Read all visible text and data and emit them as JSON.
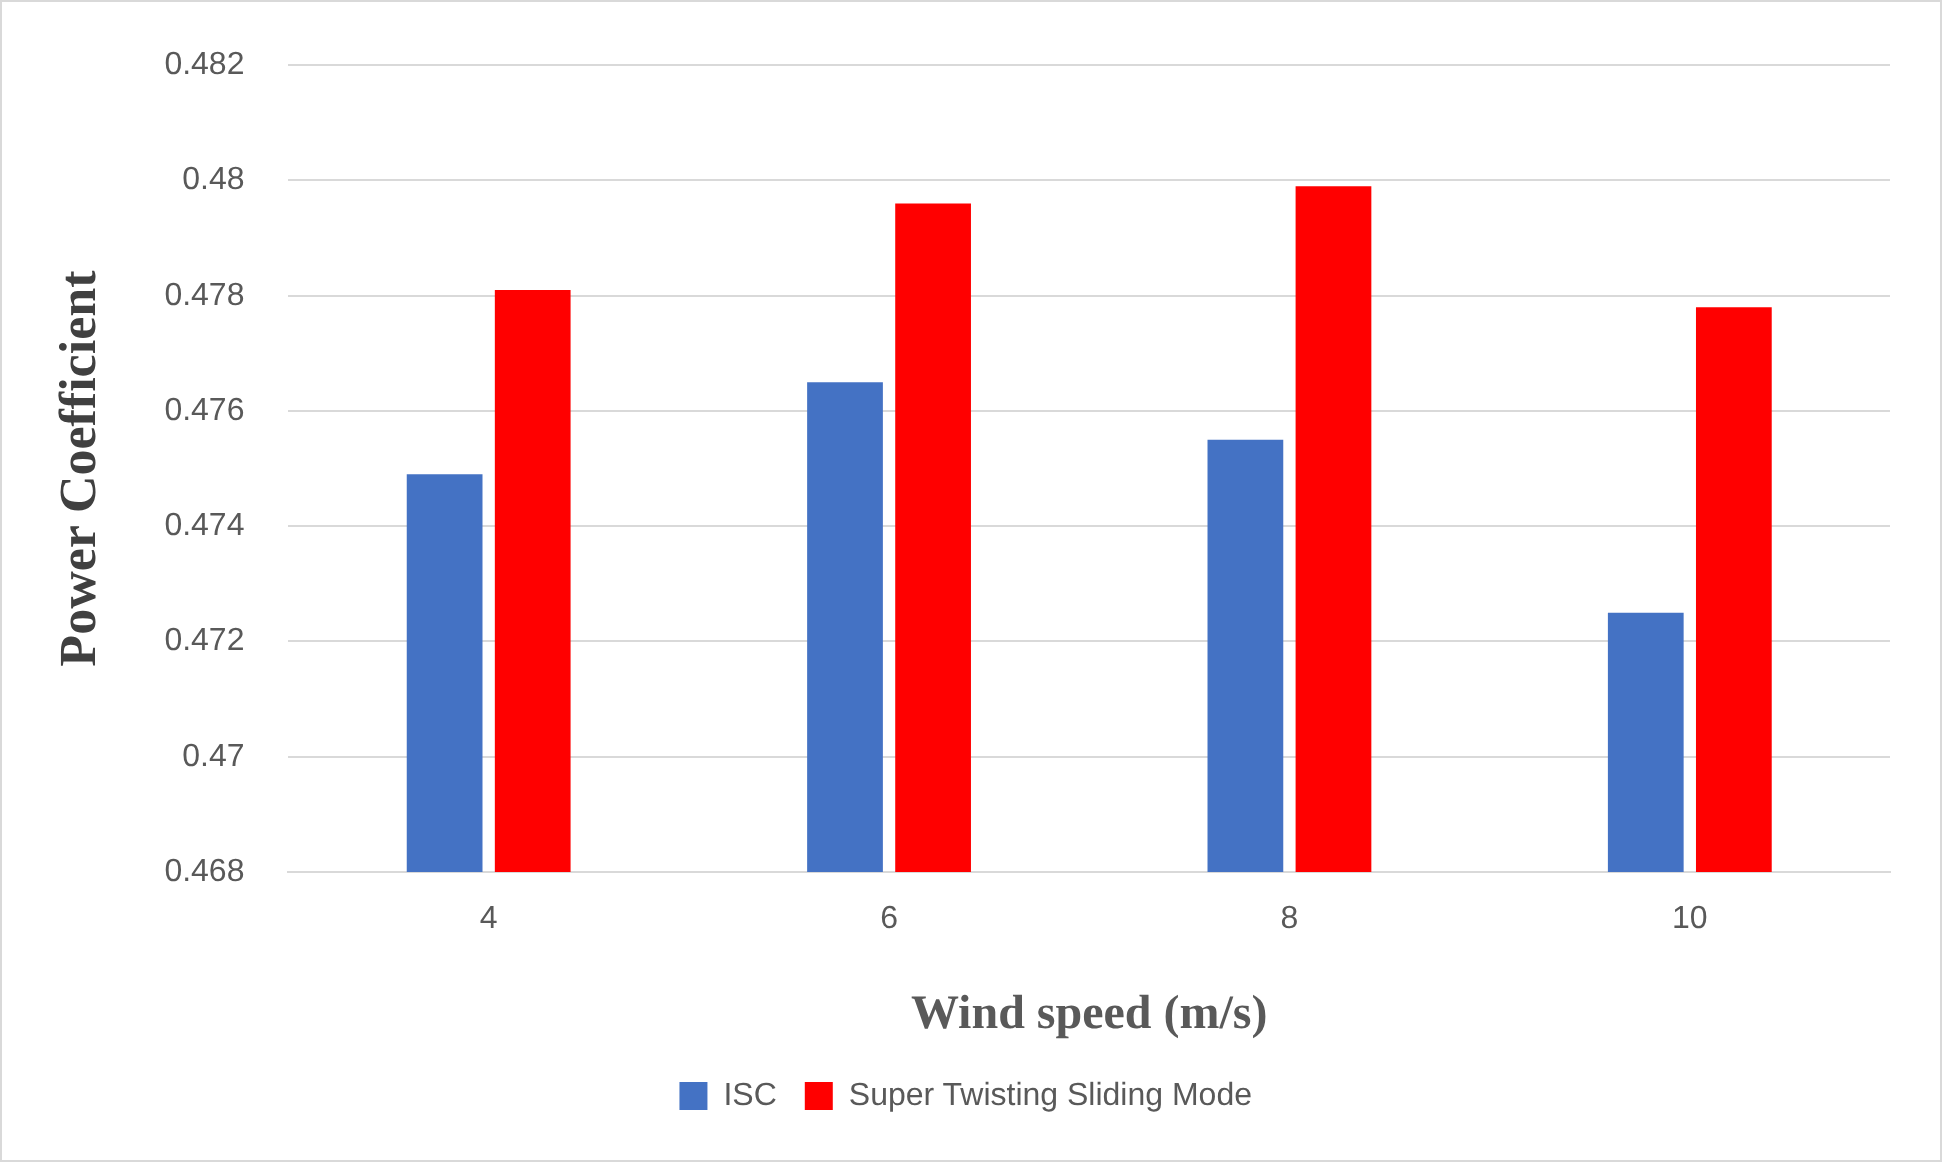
{
  "chart_data": {
    "type": "bar",
    "xlabel": "Wind speed (m/s)",
    "ylabel": "Power Coefficient",
    "categories": [
      "4",
      "6",
      "8",
      "10"
    ],
    "series": [
      {
        "name": "ISC",
        "color": "#4472c4",
        "values": [
          0.4749,
          0.4765,
          0.4755,
          0.4725
        ]
      },
      {
        "name": "Super Twisting Sliding Mode",
        "color": "#ff0000",
        "values": [
          0.4781,
          0.4796,
          0.4799,
          0.4778
        ]
      }
    ],
    "ylim": [
      0.468,
      0.482
    ],
    "yticks": [
      0.468,
      0.47,
      0.472,
      0.474,
      0.476,
      0.478,
      0.48,
      0.482
    ],
    "grid": "y",
    "legend": "bottom"
  }
}
